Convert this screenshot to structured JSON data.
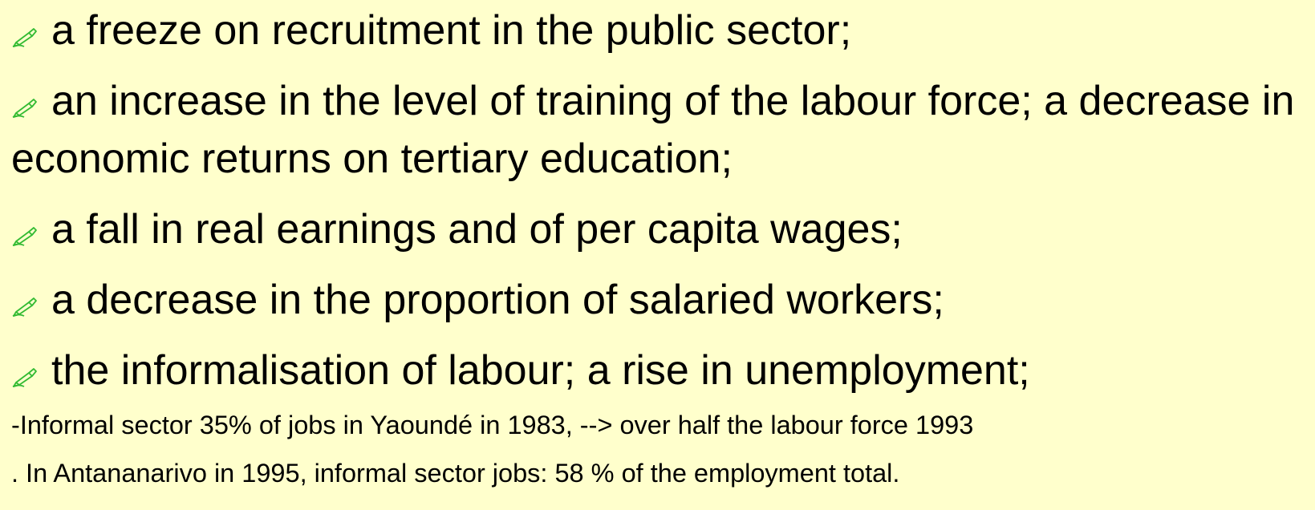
{
  "bullets": [
    "a freeze on recruitment in the public sector;",
    "an increase in the level of training of the labour force; a decrease in economic returns on tertiary education;",
    "a fall in real earnings and of per capita wages;",
    "a decrease in the proportion of salaried workers;",
    "the informalisation of labour; a rise in unemployment;"
  ],
  "notes": [
    "-Informal sector 35% of jobs in Yaoundé in 1983, --> over half the labour force 1993",
    ". In Antananarivo in 1995, informal sector jobs: 58 % of the employment total."
  ]
}
